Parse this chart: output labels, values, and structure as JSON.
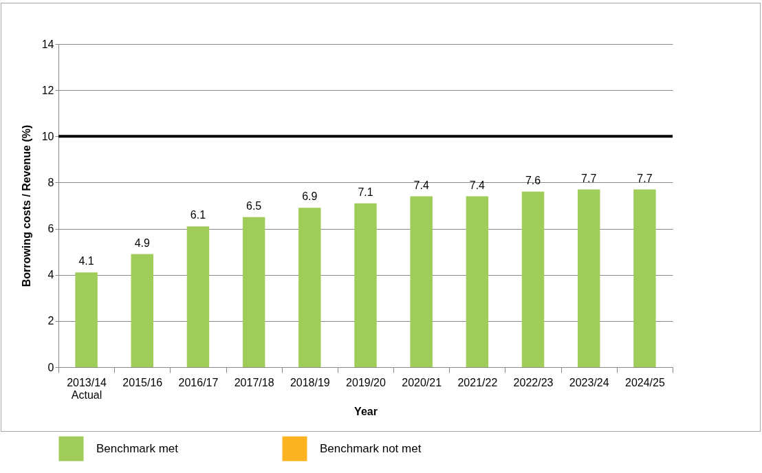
{
  "chart_data": {
    "type": "bar",
    "xlabel": "Year",
    "ylabel": "Borrowing costs / Revenue (%)",
    "categories": [
      "2013/14\nActual",
      "2015/16",
      "2016/17",
      "2017/18",
      "2018/19",
      "2019/20",
      "2020/21",
      "2021/22",
      "2022/23",
      "2023/24",
      "2024/25"
    ],
    "series": [
      {
        "name": "Benchmark met",
        "color": "#a0cc59",
        "values": [
          4.1,
          4.9,
          6.1,
          6.5,
          6.9,
          7.1,
          7.4,
          7.4,
          7.6,
          7.7,
          7.7
        ]
      },
      {
        "name": "Benchmark not met",
        "color": "#fbb321",
        "values": [
          null,
          null,
          null,
          null,
          null,
          null,
          null,
          null,
          null,
          null,
          null
        ]
      }
    ],
    "ylim": [
      0,
      14
    ],
    "yticks": [
      0,
      2,
      4,
      6,
      8,
      10,
      12,
      14
    ],
    "grid": "y",
    "legend": "bottom",
    "data_labels": true,
    "ref_lines": [
      {
        "axis": "y",
        "value": 10,
        "color": "#000000"
      }
    ]
  }
}
